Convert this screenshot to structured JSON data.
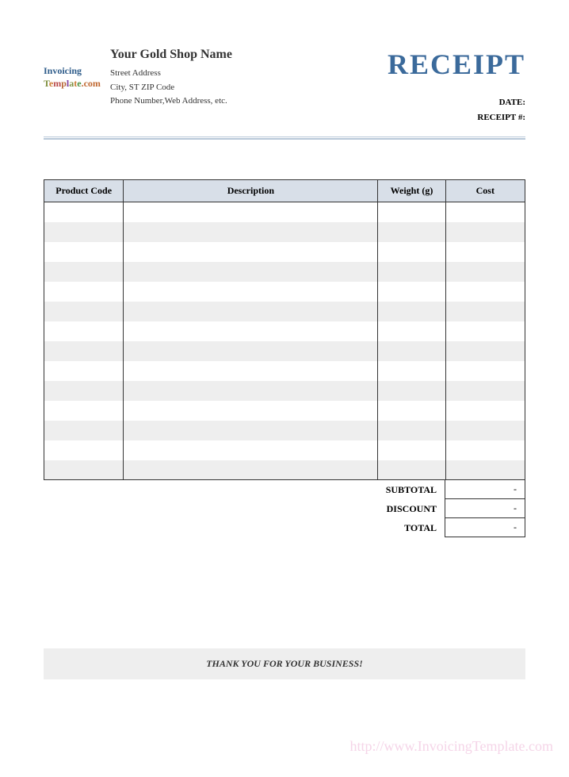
{
  "header": {
    "logo": {
      "line1": "Invoicing",
      "line2_part1": "T",
      "line2_part2": "e",
      "line2_part3": "m",
      "line2_part4": "p",
      "line2_part5": "l",
      "line2_part6": "a",
      "line2_part7": "t",
      "line2_part8": "e",
      "line2_suffix": ".com"
    },
    "shop_name": "Your Gold Shop Name",
    "address_line1": "Street Address",
    "address_line2": "City, ST  ZIP Code",
    "address_line3": "Phone Number,Web Address, etc.",
    "title": "RECEIPT",
    "meta": {
      "date_label": "DATE:",
      "receipt_num_label": "RECEIPT #:"
    }
  },
  "table": {
    "columns": {
      "code": "Product Code",
      "description": "Description",
      "weight": "Weight (g)",
      "cost": "Cost"
    },
    "row_count": 14,
    "col_widths": {
      "code": 100,
      "description": 320,
      "weight": 85,
      "cost": 100
    },
    "header_bg": "#d8dfe8",
    "stripe_bg": "#eeeeee",
    "border_color": "#333333"
  },
  "totals": {
    "subtotal_label": "SUBTOTAL",
    "subtotal_value": "-",
    "discount_label": "DISCOUNT",
    "discount_value": "-",
    "total_label": "TOTAL",
    "total_value": "-"
  },
  "footer": {
    "thank_you": "THANK YOU FOR YOUR BUSINESS!"
  },
  "watermark": "http://www.InvoicingTemplate.com",
  "colors": {
    "title": "#3b6a9b",
    "divider": "#b8c8d8",
    "watermark": "#f5d5e8"
  }
}
